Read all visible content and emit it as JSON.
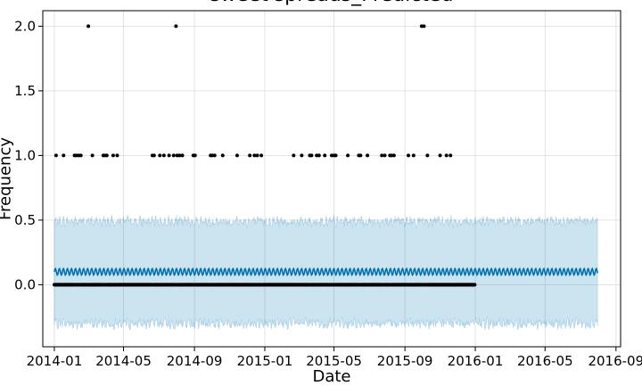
{
  "chart_data": {
    "type": "scatter",
    "title": "sweet spreads_Predicted",
    "xlabel": "Date",
    "ylabel": "Frequency",
    "xlim": [
      "2013-12-12",
      "2016-09-09"
    ],
    "ylim": [
      -0.48,
      2.12
    ],
    "x_ticks": [
      "2014-01",
      "2014-05",
      "2014-09",
      "2015-01",
      "2015-05",
      "2015-09",
      "2016-01",
      "2016-05",
      "2016-09"
    ],
    "y_ticks": [
      "0.0",
      "0.5",
      "1.0",
      "1.5",
      "2.0"
    ],
    "grid": true,
    "colors": {
      "forecast_line": "#0072B2",
      "uncertainty_band": "#0072B2",
      "observed_points": "#000000"
    },
    "forecast": {
      "start": "2014-01-01",
      "end": "2016-07-31",
      "mean": 0.1,
      "weekly_amplitude": 0.025,
      "upper_mean": 0.49,
      "lower_mean": -0.3,
      "band_noise": 0.035
    },
    "observed_range": [
      "2014-01-01",
      "2015-12-31"
    ],
    "observed_value_2": [
      "2014-03-01",
      "2014-07-31",
      "2015-09-30",
      "2015-10-04"
    ],
    "observed_value_1": [
      "2014-01-04",
      "2014-01-17",
      "2014-02-05",
      "2014-02-08",
      "2014-02-12",
      "2014-02-16",
      "2014-03-08",
      "2014-03-27",
      "2014-03-30",
      "2014-04-02",
      "2014-04-13",
      "2014-04-20",
      "2014-06-20",
      "2014-06-23",
      "2014-07-03",
      "2014-07-10",
      "2014-07-19",
      "2014-07-27",
      "2014-08-02",
      "2014-08-06",
      "2014-08-11",
      "2014-08-30",
      "2014-09-02",
      "2014-09-29",
      "2014-10-02",
      "2014-10-06",
      "2014-10-20",
      "2014-11-14",
      "2014-12-06",
      "2014-12-14",
      "2014-12-19",
      "2014-12-26",
      "2015-02-20",
      "2015-03-06",
      "2015-03-20",
      "2015-03-23",
      "2015-04-01",
      "2015-04-05",
      "2015-04-15",
      "2015-04-27",
      "2015-05-01",
      "2015-05-04",
      "2015-05-25",
      "2015-06-13",
      "2015-06-16",
      "2015-06-28",
      "2015-07-23",
      "2015-07-28",
      "2015-08-06",
      "2015-08-09",
      "2015-08-13",
      "2015-09-07",
      "2015-09-16",
      "2015-10-10",
      "2015-11-01",
      "2015-11-12",
      "2015-11-19"
    ]
  }
}
